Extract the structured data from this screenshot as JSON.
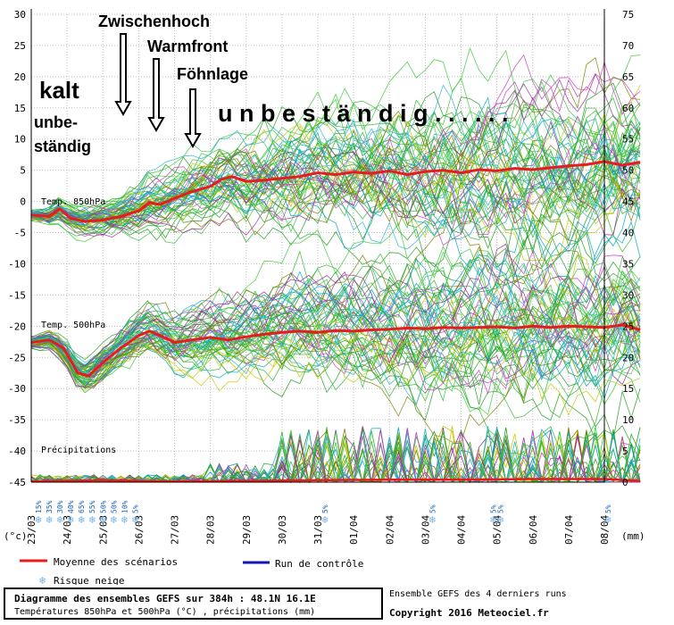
{
  "chart_data": {
    "type": "line",
    "left_axis": {
      "ticks": [
        30,
        25,
        20,
        15,
        10,
        5,
        0,
        -5,
        -10,
        -15,
        -20,
        -25,
        -30,
        -35,
        -40,
        -45
      ],
      "unit": "(°c)"
    },
    "right_axis": {
      "ticks": [
        75,
        70,
        65,
        60,
        55,
        50,
        45,
        40,
        35,
        30,
        25,
        20,
        15,
        10,
        5,
        0
      ],
      "unit": "(mm)"
    },
    "x_dates": [
      "23/03",
      "24/03",
      "25/03",
      "26/03",
      "27/03",
      "28/03",
      "29/03",
      "30/03",
      "31/03",
      "01/04",
      "02/04",
      "03/04",
      "04/04",
      "05/04",
      "06/04",
      "07/04",
      "08/04"
    ],
    "panels": [
      {
        "label": "Temp. 850hPa"
      },
      {
        "label": "Temp. 500hPa"
      },
      {
        "label": "Précipitations"
      }
    ],
    "mean_850": [
      [
        0,
        -2.2
      ],
      [
        0.5,
        -2.4
      ],
      [
        0.8,
        -1.2
      ],
      [
        1.1,
        -2.7
      ],
      [
        1.5,
        -3.2
      ],
      [
        2,
        -3.0
      ],
      [
        2.5,
        -2.4
      ],
      [
        3,
        -1.5
      ],
      [
        3.3,
        -0.2
      ],
      [
        3.6,
        -0.5
      ],
      [
        4,
        0.5
      ],
      [
        4.5,
        1.6
      ],
      [
        5,
        2.4
      ],
      [
        5.3,
        3.5
      ],
      [
        5.6,
        4.0
      ],
      [
        6,
        3.2
      ],
      [
        6.5,
        3.4
      ],
      [
        7,
        3.7
      ],
      [
        7.5,
        4.0
      ],
      [
        8,
        4.6
      ],
      [
        8.5,
        4.3
      ],
      [
        9,
        4.7
      ],
      [
        9.5,
        4.5
      ],
      [
        10,
        4.9
      ],
      [
        10.5,
        4.3
      ],
      [
        11,
        4.8
      ],
      [
        11.5,
        5.0
      ],
      [
        12,
        4.6
      ],
      [
        12.5,
        5.1
      ],
      [
        13,
        4.9
      ],
      [
        13.5,
        5.3
      ],
      [
        14,
        5.1
      ],
      [
        14.5,
        5.4
      ],
      [
        15,
        5.7
      ],
      [
        15.5,
        5.9
      ],
      [
        16,
        6.4
      ],
      [
        16.5,
        5.8
      ],
      [
        17,
        6.3
      ]
    ],
    "mean_500": [
      [
        0,
        -22.6
      ],
      [
        0.5,
        -22.2
      ],
      [
        0.9,
        -23.5
      ],
      [
        1.3,
        -27.5
      ],
      [
        1.6,
        -28.0
      ],
      [
        2,
        -25.8
      ],
      [
        2.5,
        -23.5
      ],
      [
        3,
        -21.5
      ],
      [
        3.3,
        -20.8
      ],
      [
        3.6,
        -21.5
      ],
      [
        4,
        -22.6
      ],
      [
        4.5,
        -22.2
      ],
      [
        5,
        -21.8
      ],
      [
        5.5,
        -22.2
      ],
      [
        6,
        -21.7
      ],
      [
        6.5,
        -21.3
      ],
      [
        7,
        -21.0
      ],
      [
        7.5,
        -20.8
      ],
      [
        8,
        -21.0
      ],
      [
        8.5,
        -20.7
      ],
      [
        9,
        -20.8
      ],
      [
        9.5,
        -20.6
      ],
      [
        10,
        -20.5
      ],
      [
        10.5,
        -20.3
      ],
      [
        11,
        -20.4
      ],
      [
        11.5,
        -20.2
      ],
      [
        12,
        -20.3
      ],
      [
        12.5,
        -20.2
      ],
      [
        13,
        -20.1
      ],
      [
        13.5,
        -20.3
      ],
      [
        14,
        -20.0
      ],
      [
        14.5,
        -20.2
      ],
      [
        15,
        -20.0
      ],
      [
        15.5,
        -20.1
      ],
      [
        16,
        -20.2
      ],
      [
        16.5,
        -19.8
      ],
      [
        17,
        -20.6
      ]
    ],
    "mean_precip_mm": [
      [
        0,
        0.1
      ],
      [
        2,
        0.3
      ],
      [
        4,
        0.1
      ],
      [
        6,
        0.2
      ],
      [
        8,
        0.3
      ],
      [
        10,
        0.4
      ],
      [
        12,
        0.4
      ],
      [
        14,
        0.5
      ],
      [
        16,
        0.5
      ],
      [
        17,
        0.2
      ]
    ],
    "snow_risk": [
      {
        "x": 0.2,
        "pct": "15%"
      },
      {
        "x": 0.5,
        "pct": "35%"
      },
      {
        "x": 0.8,
        "pct": "30%"
      },
      {
        "x": 1.1,
        "pct": "40%"
      },
      {
        "x": 1.4,
        "pct": "65%"
      },
      {
        "x": 1.7,
        "pct": "55%"
      },
      {
        "x": 2.0,
        "pct": "50%"
      },
      {
        "x": 2.3,
        "pct": "50%"
      },
      {
        "x": 2.6,
        "pct": "10%"
      },
      {
        "x": 2.9,
        "pct": "5%"
      },
      {
        "x": 8.2,
        "pct": "5%"
      },
      {
        "x": 11.2,
        "pct": "5%"
      },
      {
        "x": 12.9,
        "pct": "5%"
      },
      {
        "x": 13.1,
        "pct": "5%"
      },
      {
        "x": 16.1,
        "pct": "5%"
      }
    ],
    "legend": [
      {
        "label": "Moyenne des scénarios",
        "color": "#e81c1c"
      },
      {
        "label": "Run de contrôle",
        "color": "#1414b8"
      },
      {
        "label": "Risque neige",
        "color": "#76b3e6"
      }
    ],
    "annotations": [
      {
        "text": "Zwischenhoch"
      },
      {
        "text": "Warmfront"
      },
      {
        "text": "Föhnlage"
      },
      {
        "text": "kalt"
      },
      {
        "text": "unbe-"
      },
      {
        "text": "ständig"
      },
      {
        "text": "u n b e s t ä n d i g . . . . . ."
      }
    ],
    "colors": {
      "mean": "#e81c1c",
      "control": "#1414b8",
      "members": [
        "#2eb82e",
        "#3cc83c",
        "#1f9e1f",
        "#c23fc2",
        "#a02aa0",
        "#c8c800",
        "#00a7c8",
        "#2fb3d0",
        "#7f7f00"
      ],
      "grid": "#bfbfbf",
      "snow": "#76b3e6"
    }
  },
  "footer": {
    "title": "Diagramme des ensembles GEFS sur 384h : 48.1N 16.1E",
    "subtitle": "Températures 850hPa et 500hPa (°C) , précipitations (mm)",
    "credit1": "Ensemble GEFS des 4 derniers runs",
    "credit2": "Copyright 2016 Meteociel.fr"
  }
}
